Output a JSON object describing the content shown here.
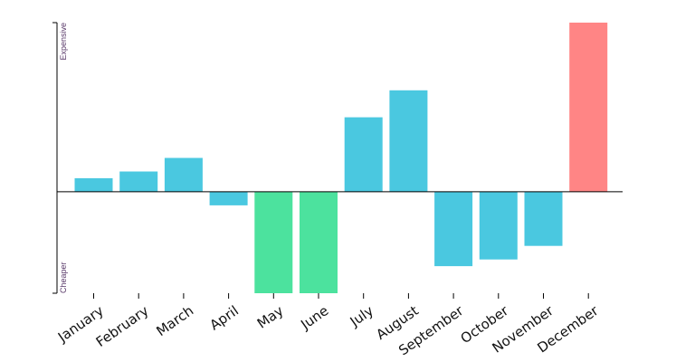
{
  "chart_data": {
    "type": "bar",
    "title": "",
    "xlabel": "",
    "ylabel": "",
    "y_top_label": "Expensive",
    "y_bottom_label": "Cheaper",
    "categories": [
      "January",
      "February",
      "March",
      "April",
      "May",
      "June",
      "July",
      "August",
      "September",
      "October",
      "November",
      "December"
    ],
    "values": [
      2,
      3,
      5,
      -2,
      -15,
      -15,
      11,
      15,
      -11,
      -10,
      -8,
      25
    ],
    "ylim": [
      -15,
      25
    ],
    "grid": false,
    "legend": "none",
    "colors": {
      "default": "#4ac8e0",
      "lowest": "#4ce29e",
      "highest": "#ff8585",
      "axis": "#000000"
    }
  }
}
